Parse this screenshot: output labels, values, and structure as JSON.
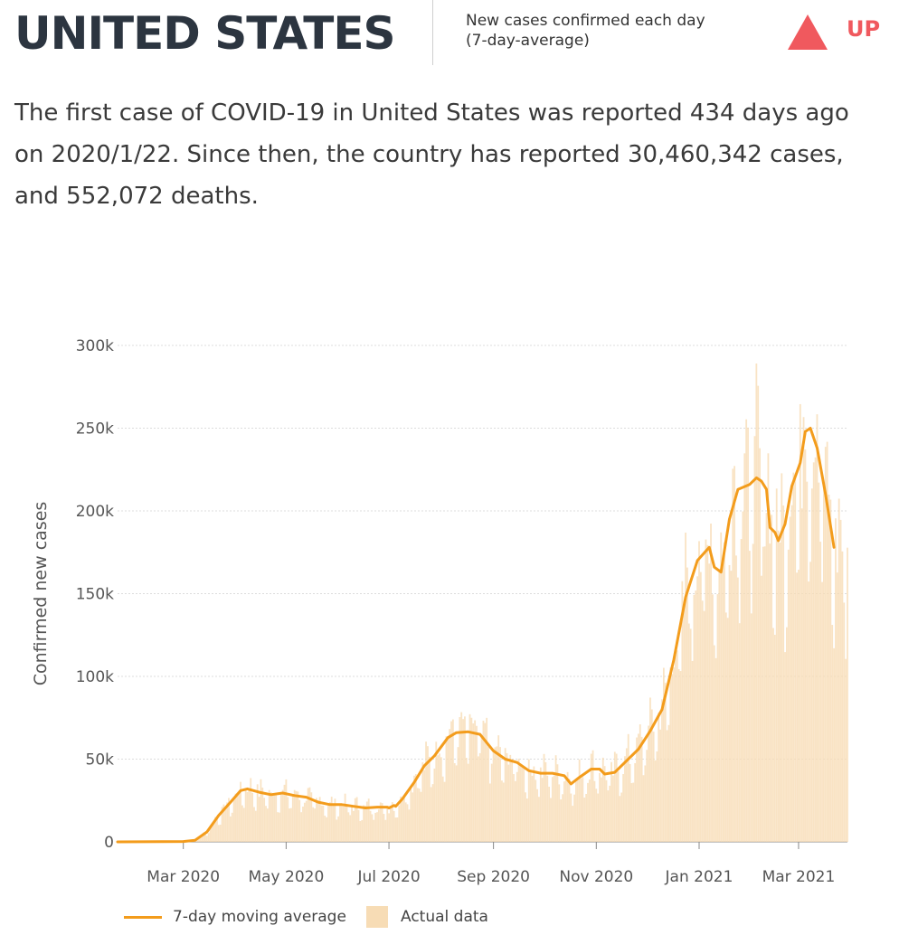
{
  "header": {
    "country": "UNITED STATES",
    "metric_line1": "New cases confirmed each day",
    "metric_line2": "(7-day-average)",
    "trend_label": "UP",
    "trend_icon": "triangle-up-icon",
    "trend_color": "#f0595e"
  },
  "summary": {
    "text": "The first case of COVID-19 in United States was reported 434 days ago on 2020/1/22. Since then, the country has reported 30,460,342 cases, and 552,072 deaths."
  },
  "chart_data": {
    "type": "line",
    "ylabel": "Confirmed new cases",
    "ylim": [
      0,
      300000
    ],
    "yticks": [
      0,
      50000,
      100000,
      150000,
      200000,
      250000,
      300000
    ],
    "ytick_labels": [
      "0",
      "50k",
      "100k",
      "150k",
      "200k",
      "250k",
      "300k"
    ],
    "x_start": "2020-01-22",
    "x_end": "2021-03-30",
    "xticks": [
      "2020-03-01",
      "2020-05-01",
      "2020-07-01",
      "2020-09-01",
      "2020-11-01",
      "2021-01-01",
      "2021-03-01"
    ],
    "xtick_labels": [
      "Mar 2020",
      "May 2020",
      "Jul 2020",
      "Sep 2020",
      "Nov 2020",
      "Jan 2021",
      "Mar 2021"
    ],
    "grid": "horizontal",
    "legend_position": "bottom-left",
    "series": [
      {
        "name": "7-day moving average",
        "kind": "line",
        "color": "#f39c1c",
        "points": [
          [
            "2020-01-22",
            0
          ],
          [
            "2020-03-01",
            200
          ],
          [
            "2020-03-08",
            1000
          ],
          [
            "2020-03-15",
            6000
          ],
          [
            "2020-03-22",
            16000
          ],
          [
            "2020-03-29",
            24000
          ],
          [
            "2020-04-04",
            31000
          ],
          [
            "2020-04-08",
            32000
          ],
          [
            "2020-04-15",
            30000
          ],
          [
            "2020-04-22",
            28500
          ],
          [
            "2020-04-29",
            29500
          ],
          [
            "2020-05-06",
            28000
          ],
          [
            "2020-05-13",
            27000
          ],
          [
            "2020-05-20",
            24000
          ],
          [
            "2020-05-27",
            22500
          ],
          [
            "2020-06-03",
            22500
          ],
          [
            "2020-06-10",
            21500
          ],
          [
            "2020-06-17",
            20500
          ],
          [
            "2020-06-24",
            21000
          ],
          [
            "2020-07-01",
            20500
          ],
          [
            "2020-06-28",
            21000
          ],
          [
            "2020-07-05",
            21500
          ],
          [
            "2020-06-30",
            21000
          ],
          [
            "2020-07-04",
            22000
          ],
          [
            "2020-07-09",
            26000
          ],
          [
            "2020-07-16",
            36000
          ],
          [
            "2020-07-22",
            46000
          ],
          [
            "2020-07-28",
            52000
          ],
          [
            "2020-08-05",
            63000
          ],
          [
            "2020-08-10",
            66000
          ],
          [
            "2020-08-17",
            66500
          ],
          [
            "2020-08-24",
            65000
          ],
          [
            "2020-09-01",
            55000
          ],
          [
            "2020-09-08",
            50000
          ],
          [
            "2020-09-15",
            48000
          ],
          [
            "2020-09-22",
            43000
          ],
          [
            "2020-09-29",
            41500
          ],
          [
            "2020-10-06",
            41500
          ],
          [
            "2020-10-13",
            40000
          ],
          [
            "2020-10-17",
            35000
          ],
          [
            "2020-10-22",
            39000
          ],
          [
            "2020-10-29",
            44000
          ],
          [
            "2020-11-03",
            44000
          ],
          [
            "2020-11-06",
            41000
          ],
          [
            "2020-11-12",
            42000
          ],
          [
            "2020-11-19",
            49000
          ],
          [
            "2020-11-26",
            56000
          ],
          [
            "2020-12-03",
            67000
          ],
          [
            "2020-12-10",
            80000
          ],
          [
            "2020-12-17",
            110000
          ],
          [
            "2020-12-24",
            148000
          ],
          [
            "2020-12-31",
            170000
          ],
          [
            "2021-01-07",
            178000
          ],
          [
            "2021-01-10",
            166000
          ],
          [
            "2021-01-14",
            163000
          ],
          [
            "2021-01-19",
            195000
          ],
          [
            "2021-01-24",
            213000
          ],
          [
            "2021-01-31",
            216000
          ],
          [
            "2021-02-04",
            220000
          ],
          [
            "2021-02-07",
            218000
          ],
          [
            "2021-02-10",
            213000
          ],
          [
            "2021-02-12",
            190000
          ],
          [
            "2021-02-15",
            187000
          ],
          [
            "2021-02-17",
            182000
          ],
          [
            "2021-02-21",
            192000
          ],
          [
            "2021-02-25",
            215000
          ],
          [
            "2021-03-02",
            229000
          ],
          [
            "2021-03-05",
            248000
          ],
          [
            "2021-03-08",
            250000
          ],
          [
            "2021-03-12",
            238000
          ],
          [
            "2021-03-17",
            210000
          ],
          [
            "2021-03-22",
            178000
          ]
        ]
      },
      {
        "name": "Actual data",
        "kind": "bars",
        "color": "#f7dcb5"
      }
    ]
  },
  "legend": {
    "line_label": "7-day moving average",
    "bars_label": "Actual data"
  }
}
